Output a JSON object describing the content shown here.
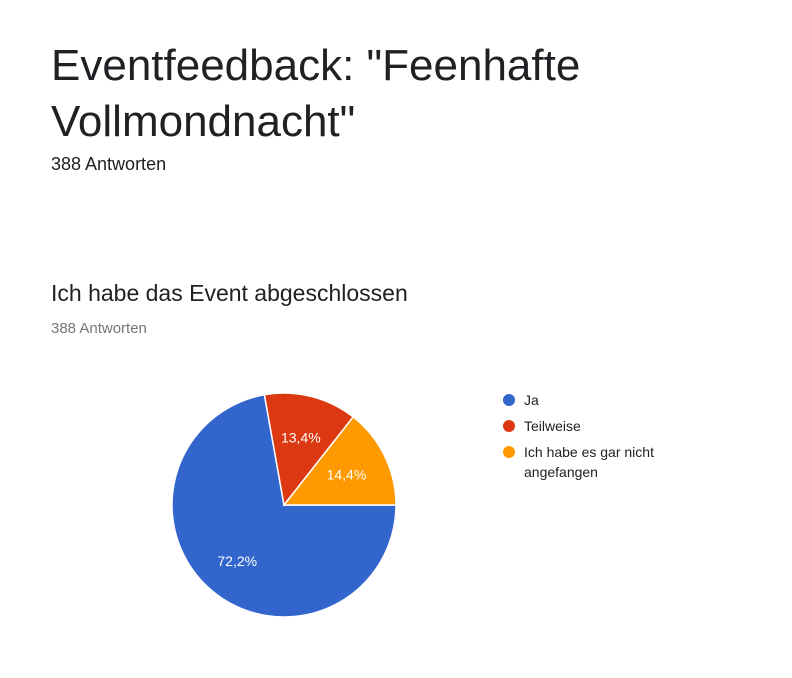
{
  "form": {
    "title": "Eventfeedback: \"Feenhafte Vollmondnacht\"",
    "responses": "388 Antworten"
  },
  "question": {
    "title": "Ich habe das Event abgeschlossen",
    "responses": "388 Antworten"
  },
  "chart_data": {
    "type": "pie",
    "title": "Ich habe das Event abgeschlossen",
    "slices": [
      {
        "label": "Ja",
        "value": 72.2,
        "display": "72,2%",
        "color": "#3366cc"
      },
      {
        "label": "Teilweise",
        "value": 13.4,
        "display": "13,4%",
        "color": "#dc3912"
      },
      {
        "label": "Ich habe es gar nicht angefangen",
        "value": 14.4,
        "display": "14,4%",
        "color": "#ff9900"
      }
    ],
    "legend_position": "right"
  }
}
